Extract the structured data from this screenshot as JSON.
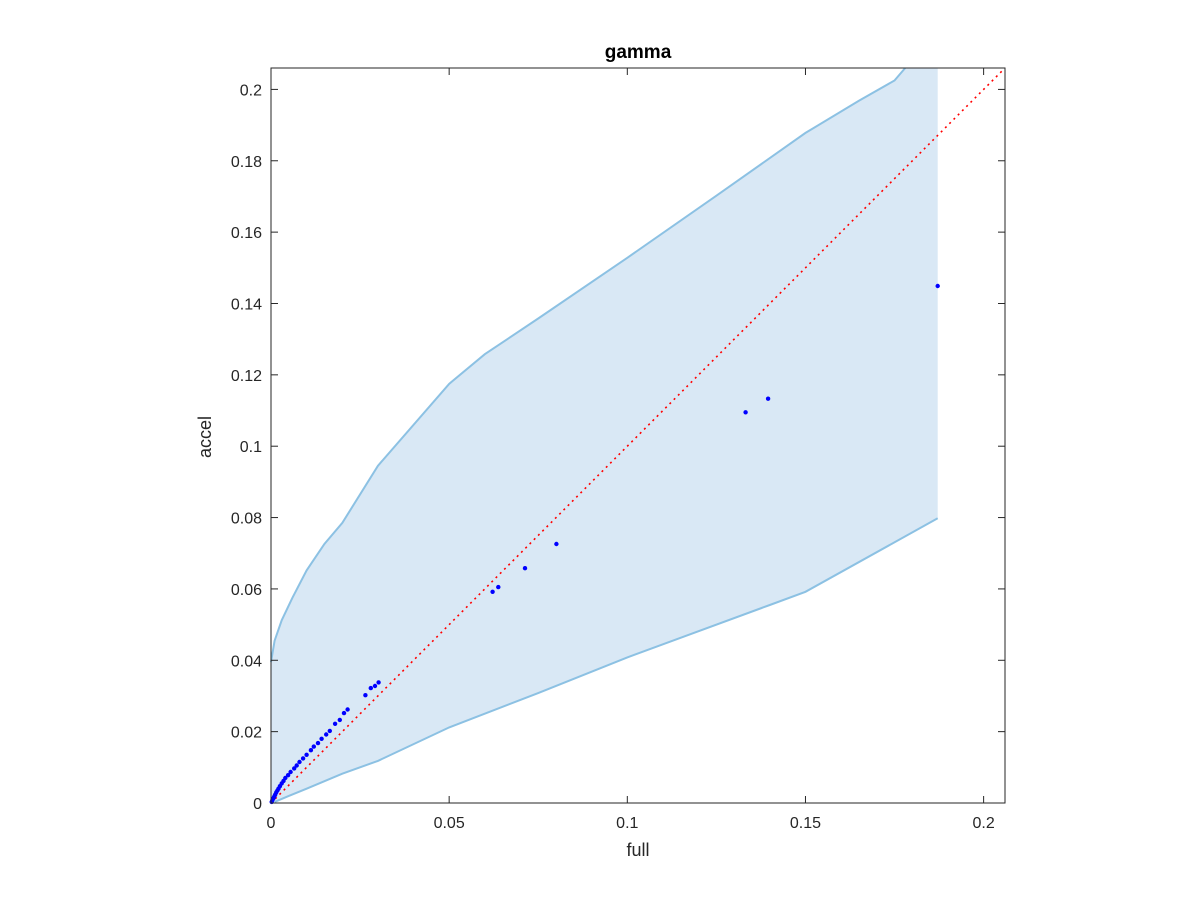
{
  "chart_data": {
    "type": "scatter",
    "title": "gamma",
    "xlabel": "full",
    "ylabel": "accel",
    "xlim": [
      0,
      0.206
    ],
    "ylim": [
      0,
      0.206
    ],
    "xticks": [
      0,
      0.05,
      0.1,
      0.15,
      0.2
    ],
    "xtick_labels": [
      "0",
      "0.05",
      "0.1",
      "0.15",
      "0.2"
    ],
    "yticks": [
      0,
      0.02,
      0.04,
      0.06,
      0.08,
      0.1,
      0.12,
      0.14,
      0.16,
      0.18,
      0.2
    ],
    "ytick_labels": [
      "0",
      "0.02",
      "0.04",
      "0.06",
      "0.08",
      "0.1",
      "0.12",
      "0.14",
      "0.16",
      "0.18",
      "0.2"
    ],
    "grid": false,
    "colors": {
      "points": "#0000ff",
      "band_fill": "#d9e8f5",
      "band_edge": "#8cc1e3",
      "reference_line": "#ff0000",
      "axes": "#262626"
    },
    "points": [
      [
        0.0002,
        0.0003
      ],
      [
        0.0004,
        0.0008
      ],
      [
        0.0006,
        0.0012
      ],
      [
        0.0008,
        0.0016
      ],
      [
        0.001,
        0.002
      ],
      [
        0.0012,
        0.0024
      ],
      [
        0.0015,
        0.003
      ],
      [
        0.0018,
        0.0035
      ],
      [
        0.0021,
        0.004
      ],
      [
        0.0025,
        0.0047
      ],
      [
        0.003,
        0.0055
      ],
      [
        0.0035,
        0.0062
      ],
      [
        0.004,
        0.007
      ],
      [
        0.0048,
        0.0078
      ],
      [
        0.0055,
        0.0087
      ],
      [
        0.0065,
        0.0097
      ],
      [
        0.0072,
        0.0105
      ],
      [
        0.008,
        0.0115
      ],
      [
        0.009,
        0.0125
      ],
      [
        0.01,
        0.0135
      ],
      [
        0.0112,
        0.0148
      ],
      [
        0.012,
        0.0158
      ],
      [
        0.0132,
        0.0168
      ],
      [
        0.0142,
        0.018
      ],
      [
        0.0155,
        0.0192
      ],
      [
        0.0165,
        0.0202
      ],
      [
        0.018,
        0.0222
      ],
      [
        0.0193,
        0.0233
      ],
      [
        0.0205,
        0.0252
      ],
      [
        0.0215,
        0.0262
      ],
      [
        0.0265,
        0.0302
      ],
      [
        0.028,
        0.0322
      ],
      [
        0.0292,
        0.0328
      ],
      [
        0.0302,
        0.0338
      ],
      [
        0.0622,
        0.0592
      ],
      [
        0.0638,
        0.0605
      ],
      [
        0.0713,
        0.0658
      ],
      [
        0.0801,
        0.0726
      ],
      [
        0.1332,
        0.1095
      ],
      [
        0.1395,
        0.1133
      ],
      [
        0.1871,
        0.1449
      ]
    ],
    "band_upper": [
      [
        0,
        0.0395
      ],
      [
        0.001,
        0.0455
      ],
      [
        0.003,
        0.0512
      ],
      [
        0.006,
        0.0575
      ],
      [
        0.01,
        0.0652
      ],
      [
        0.015,
        0.0726
      ],
      [
        0.02,
        0.0785
      ],
      [
        0.03,
        0.0945
      ],
      [
        0.05,
        0.1175
      ],
      [
        0.06,
        0.1258
      ],
      [
        0.075,
        0.1358
      ],
      [
        0.1,
        0.1528
      ],
      [
        0.125,
        0.1702
      ],
      [
        0.15,
        0.1878
      ],
      [
        0.165,
        0.1968
      ],
      [
        0.175,
        0.2025
      ],
      [
        0.178,
        0.206
      ]
    ],
    "band_lower": [
      [
        0.1871,
        0.0798
      ],
      [
        0.15,
        0.0592
      ],
      [
        0.14,
        0.0555
      ],
      [
        0.1,
        0.0408
      ],
      [
        0.075,
        0.0308
      ],
      [
        0.05,
        0.0212
      ],
      [
        0.03,
        0.0118
      ],
      [
        0.02,
        0.0082
      ],
      [
        0.01,
        0.004
      ],
      [
        0.005,
        0.002
      ],
      [
        0.001,
        0.0003
      ],
      [
        0,
        0
      ]
    ],
    "band_right_x": 0.1871,
    "reference_line": [
      [
        0,
        0
      ],
      [
        0.206,
        0.206
      ]
    ]
  }
}
